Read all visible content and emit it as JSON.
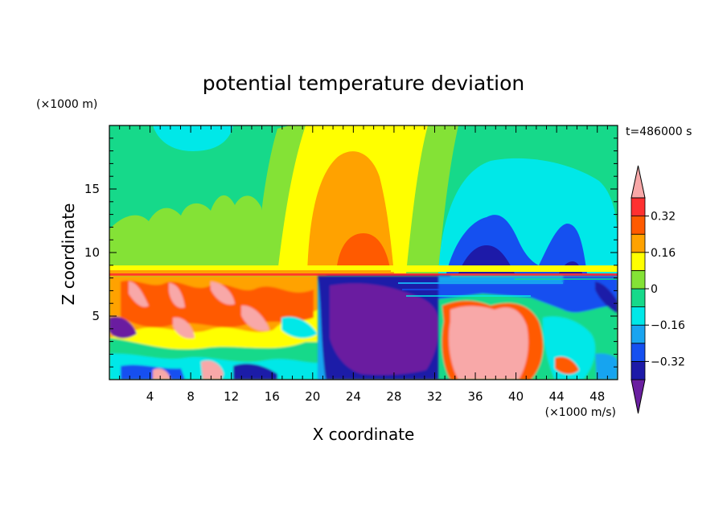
{
  "chart_data": {
    "type": "heatmap",
    "title": "potential temperature deviation",
    "xlabel": "X coordinate",
    "ylabel": "Z coordinate",
    "x_unit": "(×1000 m/s)",
    "y_unit": "(×1000 m)",
    "time_label": "t=486000 s",
    "xlim": [
      0,
      50
    ],
    "ylim": [
      0,
      20
    ],
    "x_ticks": [
      4,
      8,
      12,
      16,
      20,
      24,
      28,
      32,
      36,
      40,
      44,
      48
    ],
    "y_ticks": [
      5,
      10,
      15
    ],
    "colorbar": {
      "levels": [
        -0.4,
        -0.32,
        -0.24,
        -0.16,
        -0.08,
        0,
        0.08,
        0.16,
        0.24,
        0.32,
        0.4
      ],
      "tick_labels": [
        "0.32",
        "0.16",
        "0",
        "−0.16",
        "−0.32"
      ],
      "tick_values": [
        0.32,
        0.16,
        0,
        -0.16,
        -0.32
      ],
      "colors": [
        "#6a1fa0",
        "#1d1aa8",
        "#1550f0",
        "#19a4f0",
        "#00e8e8",
        "#16d98a",
        "#84e236",
        "#ffff00",
        "#ffa200",
        "#ff5a00",
        "#ff3030",
        "#f8a8a8"
      ],
      "extend": "both"
    }
  }
}
